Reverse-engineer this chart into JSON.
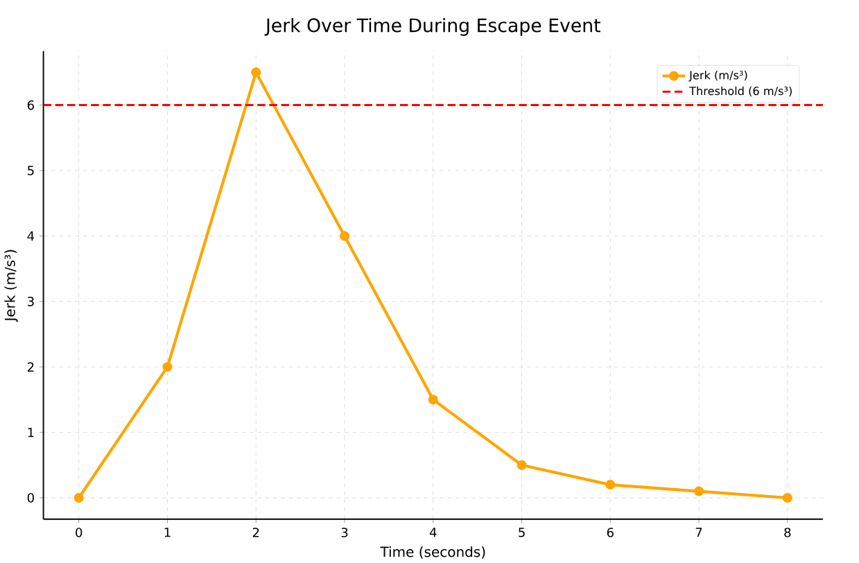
{
  "chart_data": {
    "type": "line",
    "title": "Jerk Over Time During Escape Event",
    "xlabel": "Time (seconds)",
    "ylabel": "Jerk (m/s³)",
    "x": [
      0,
      1,
      2,
      3,
      4,
      5,
      6,
      7,
      8
    ],
    "series": [
      {
        "name": "Jerk (m/s³)",
        "color": "#ffa500",
        "values": [
          0,
          2,
          6.5,
          4,
          1.5,
          0.5,
          0.2,
          0.1,
          0
        ]
      }
    ],
    "xlim": [
      -0.4,
      8.4
    ],
    "xticks": [
      0,
      1,
      2,
      3,
      4,
      5,
      6,
      7,
      8
    ],
    "ylim": [
      -0.325,
      6.825
    ],
    "yticks": [
      0,
      1,
      2,
      3,
      4,
      5,
      6
    ],
    "ref_lines": [
      {
        "axis": "y",
        "value": 6,
        "label": "Threshold (6 m/s³)",
        "color": "#ff0000",
        "line_style": "dashed"
      }
    ],
    "grid": true,
    "legend": "top right",
    "marker": "circle",
    "line_style": "solid"
  }
}
